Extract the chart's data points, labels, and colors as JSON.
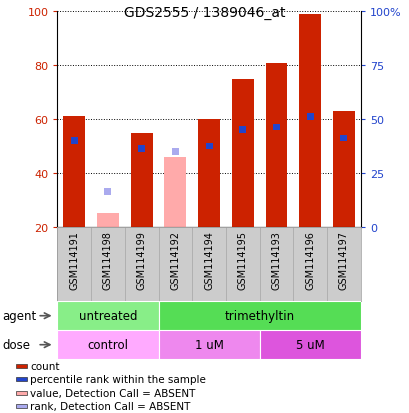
{
  "title": "GDS2555 / 1389046_at",
  "samples": [
    "GSM114191",
    "GSM114198",
    "GSM114199",
    "GSM114192",
    "GSM114194",
    "GSM114195",
    "GSM114193",
    "GSM114196",
    "GSM114197"
  ],
  "red_bars": [
    61,
    0,
    55,
    0,
    60,
    75,
    81,
    99,
    63
  ],
  "blue_bars": [
    52,
    0,
    49,
    0,
    50,
    56,
    57,
    61,
    53
  ],
  "pink_bars": [
    0,
    25,
    0,
    46,
    0,
    0,
    0,
    0,
    0
  ],
  "lightblue_bars": [
    0,
    33,
    0,
    48,
    0,
    0,
    0,
    0,
    0
  ],
  "red_color": "#cc2200",
  "blue_color": "#2244cc",
  "pink_color": "#ffaaaa",
  "lightblue_color": "#aaaaee",
  "ymin": 20,
  "ymax": 100,
  "yticks_left": [
    20,
    40,
    60,
    80,
    100
  ],
  "yticks_right": [
    0,
    25,
    50,
    75,
    100
  ],
  "ytick_labels_right": [
    "0",
    "25",
    "50",
    "75",
    "100%"
  ],
  "agent_groups": [
    {
      "label": "untreated",
      "start": 0,
      "end": 3,
      "color": "#88ee88"
    },
    {
      "label": "trimethyltin",
      "start": 3,
      "end": 9,
      "color": "#55dd55"
    }
  ],
  "dose_groups": [
    {
      "label": "control",
      "start": 0,
      "end": 3,
      "color": "#ffaaff"
    },
    {
      "label": "1 uM",
      "start": 3,
      "end": 6,
      "color": "#ee88ee"
    },
    {
      "label": "5 uM",
      "start": 6,
      "end": 9,
      "color": "#dd55dd"
    }
  ],
  "legend_items": [
    {
      "color": "#cc2200",
      "label": "count"
    },
    {
      "color": "#2244cc",
      "label": "percentile rank within the sample"
    },
    {
      "color": "#ffaaaa",
      "label": "value, Detection Call = ABSENT"
    },
    {
      "color": "#aaaaee",
      "label": "rank, Detection Call = ABSENT"
    }
  ],
  "bar_width": 0.65,
  "background_color": "#ffffff",
  "sample_bg_color": "#cccccc"
}
